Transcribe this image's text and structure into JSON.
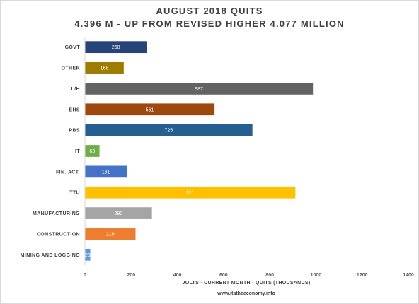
{
  "title": "AUGUST  2018 QUITS",
  "subtitle": "4.396 M - UP FROM  REVISED HIGHER 4.077 MILLION",
  "source_text": "www.itstheeconomy.info",
  "chart_data": {
    "type": "bar",
    "orientation": "horizontal",
    "title": "AUGUST  2018 QUITS",
    "subtitle": "4.396 M - UP FROM  REVISED HIGHER 4.077 MILLION",
    "xlabel": "JOLTS - CURRENT MONTH - QUITS (THOUSANDS)",
    "ylabel": "",
    "xlim": [
      0,
      1400
    ],
    "xticks": [
      0,
      200,
      400,
      600,
      800,
      1000,
      1200,
      1400
    ],
    "grid": false,
    "legend": "none",
    "categories": [
      "GOVT",
      "OTHER",
      "L/H",
      "EHS",
      "PBS",
      "IT",
      "FIN. ACT.",
      "TTU",
      "MANUFACTURING",
      "CONSTRUCTION",
      "MINING AND LOGGING"
    ],
    "values": [
      268,
      168,
      987,
      561,
      725,
      63,
      181,
      911,
      290,
      219,
      23
    ],
    "colors": [
      "#264478",
      "#9e7c00",
      "#636363",
      "#9e480e",
      "#255e91",
      "#70ad47",
      "#4472c4",
      "#ffc000",
      "#a5a5a5",
      "#ed7d31",
      "#5b9bd5"
    ],
    "data_label_color": "#ffffff"
  }
}
